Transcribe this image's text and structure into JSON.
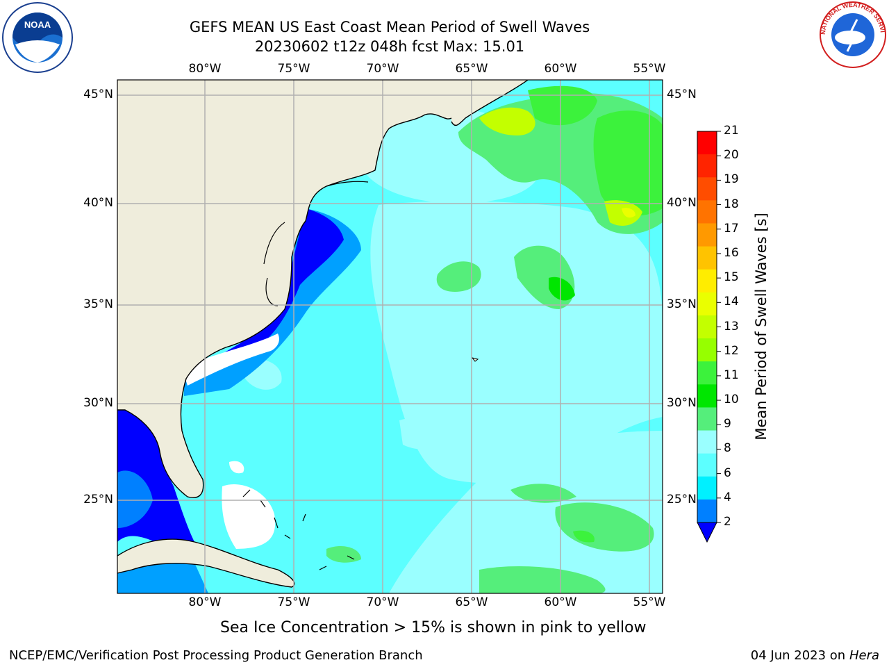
{
  "header": {
    "title": "GEFS MEAN US East Coast Mean Period of Swell Waves",
    "subtitle": "20230602 t12z 048h fcst   Max: 15.01"
  },
  "map": {
    "lon_labels": [
      "80°W",
      "75°W",
      "70°W",
      "65°W",
      "60°W",
      "55°W"
    ],
    "lat_labels": [
      "45°N",
      "40°N",
      "35°N",
      "30°N",
      "25°N"
    ],
    "colors": {
      "land": "#efeddc",
      "ocean_base": "#5cffff",
      "grid": "#b0b0b0"
    }
  },
  "colorbar": {
    "title": "Mean Period of Swell Waves [s]",
    "ticks": [
      "21",
      "20",
      "19",
      "18",
      "17",
      "16",
      "15",
      "14",
      "13",
      "12",
      "11",
      "10",
      "9",
      "8",
      "6",
      "4",
      "2"
    ],
    "colors_top_to_bottom": [
      "#ff0000",
      "#ff2400",
      "#ff4d00",
      "#ff7300",
      "#ff9900",
      "#ffc300",
      "#ffed00",
      "#eaff00",
      "#c3ff00",
      "#96ff00",
      "#3cf23c",
      "#00e600",
      "#55ee7b",
      "#9affff",
      "#5cffff",
      "#00f0ff",
      "#0080ff"
    ],
    "extend_color": "#0000ff"
  },
  "footer": {
    "note": "Sea Ice Concentration > 15% is shown in pink to yellow",
    "credit": "NCEP/EMC/Verification Post Processing Product Generation Branch",
    "date": "04 Jun 2023 on",
    "machine": "Hera"
  },
  "logos": {
    "noaa_text": "NOAA",
    "nws_text": "NATIONAL WEATHER SERVICE"
  }
}
